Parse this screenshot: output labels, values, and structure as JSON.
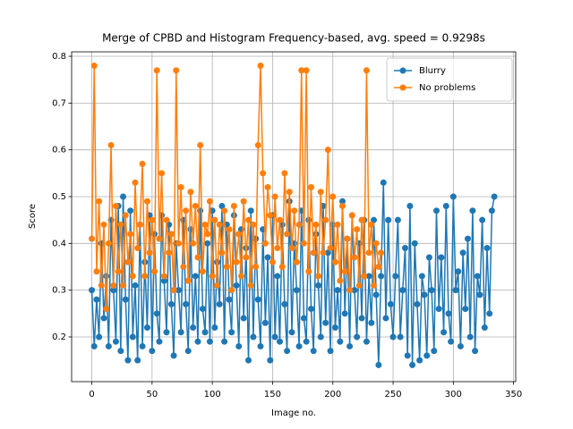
{
  "chart_data": {
    "type": "line",
    "title": "Merge of CPBD and Histogram Frequency-based, avg. speed = 0.9298s",
    "x_label": "Image no.",
    "y_label": "Score",
    "xlim": [
      -16.75,
      351.75
    ],
    "xticks": [
      0,
      50,
      100,
      150,
      200,
      250,
      300,
      350
    ],
    "ylim": [
      0.1044,
      0.8096
    ],
    "yticks": [
      0.2,
      0.3,
      0.4,
      0.5,
      0.6,
      0.7,
      0.8
    ],
    "grid": true,
    "legend": "upper right",
    "marker": "o",
    "series": [
      {
        "name": "Blurry",
        "color": "#1f77b4",
        "x": [
          0,
          2,
          4,
          6,
          8,
          10,
          12,
          14,
          16,
          18,
          20,
          22,
          24,
          26,
          28,
          30,
          32,
          34,
          36,
          38,
          40,
          42,
          44,
          46,
          48,
          50,
          52,
          54,
          56,
          58,
          60,
          62,
          64,
          66,
          68,
          70,
          72,
          74,
          76,
          78,
          80,
          82,
          84,
          86,
          88,
          90,
          92,
          94,
          96,
          98,
          100,
          102,
          104,
          106,
          108,
          110,
          112,
          114,
          116,
          118,
          120,
          122,
          124,
          126,
          128,
          130,
          132,
          134,
          136,
          138,
          140,
          142,
          144,
          146,
          148,
          150,
          152,
          154,
          156,
          158,
          160,
          162,
          164,
          166,
          168,
          170,
          172,
          174,
          176,
          178,
          180,
          182,
          184,
          186,
          188,
          190,
          192,
          194,
          196,
          198,
          200,
          202,
          204,
          206,
          208,
          210,
          212,
          214,
          216,
          218,
          220,
          222,
          224,
          226,
          228,
          230,
          232,
          234,
          236,
          238,
          240,
          242,
          244,
          246,
          248,
          250,
          252,
          254,
          256,
          258,
          260,
          262,
          264,
          266,
          268,
          270,
          272,
          274,
          276,
          278,
          280,
          282,
          284,
          286,
          288,
          290,
          292,
          294,
          296,
          298,
          300,
          302,
          304,
          306,
          308,
          310,
          312,
          314,
          316,
          318,
          320,
          322,
          324,
          326,
          328,
          330,
          332,
          334
        ],
        "values": [
          0.3,
          0.18,
          0.28,
          0.2,
          0.4,
          0.24,
          0.33,
          0.18,
          0.45,
          0.3,
          0.19,
          0.48,
          0.17,
          0.5,
          0.28,
          0.15,
          0.47,
          0.2,
          0.31,
          0.15,
          0.44,
          0.18,
          0.36,
          0.22,
          0.46,
          0.17,
          0.42,
          0.25,
          0.19,
          0.46,
          0.32,
          0.21,
          0.44,
          0.27,
          0.16,
          0.4,
          0.3,
          0.21,
          0.45,
          0.27,
          0.17,
          0.43,
          0.22,
          0.33,
          0.19,
          0.47,
          0.26,
          0.21,
          0.4,
          0.19,
          0.47,
          0.22,
          0.36,
          0.27,
          0.48,
          0.19,
          0.44,
          0.28,
          0.21,
          0.46,
          0.31,
          0.18,
          0.43,
          0.24,
          0.39,
          0.15,
          0.47,
          0.2,
          0.41,
          0.28,
          0.18,
          0.43,
          0.23,
          0.37,
          0.15,
          0.46,
          0.2,
          0.33,
          0.19,
          0.44,
          0.27,
          0.17,
          0.49,
          0.21,
          0.4,
          0.3,
          0.18,
          0.47,
          0.24,
          0.19,
          0.45,
          0.26,
          0.17,
          0.42,
          0.31,
          0.2,
          0.48,
          0.23,
          0.38,
          0.17,
          0.44,
          0.22,
          0.3,
          0.19,
          0.49,
          0.25,
          0.41,
          0.18,
          0.46,
          0.3,
          0.2,
          0.4,
          0.24,
          0.45,
          0.19,
          0.33,
          0.23,
          0.45,
          0.29,
          0.14,
          0.33,
          0.53,
          0.24,
          0.45,
          0.27,
          0.2,
          0.33,
          0.45,
          0.2,
          0.3,
          0.39,
          0.16,
          0.48,
          0.14,
          0.4,
          0.27,
          0.15,
          0.33,
          0.29,
          0.16,
          0.37,
          0.3,
          0.17,
          0.47,
          0.26,
          0.37,
          0.21,
          0.48,
          0.25,
          0.19,
          0.5,
          0.3,
          0.34,
          0.18,
          0.38,
          0.26,
          0.41,
          0.2,
          0.47,
          0.17,
          0.33,
          0.29,
          0.45,
          0.22,
          0.39,
          0.25,
          0.47,
          0.5
        ]
      },
      {
        "name": "No problems",
        "color": "#ff7f0e",
        "x": [
          0,
          2,
          4,
          6,
          8,
          10,
          12,
          14,
          16,
          18,
          20,
          22,
          24,
          26,
          28,
          30,
          32,
          34,
          36,
          38,
          40,
          42,
          44,
          46,
          48,
          50,
          52,
          54,
          56,
          58,
          60,
          62,
          64,
          66,
          68,
          70,
          72,
          74,
          76,
          78,
          80,
          82,
          84,
          86,
          88,
          90,
          92,
          94,
          96,
          98,
          100,
          102,
          104,
          106,
          108,
          110,
          112,
          114,
          116,
          118,
          120,
          122,
          124,
          126,
          128,
          130,
          132,
          134,
          136,
          138,
          140,
          142,
          144,
          146,
          148,
          150,
          152,
          154,
          156,
          158,
          160,
          162,
          164,
          166,
          168,
          170,
          172,
          174,
          176,
          178,
          180,
          182,
          184,
          186,
          188,
          190,
          192,
          194,
          196,
          198,
          200,
          202,
          204,
          206,
          208,
          210,
          212,
          214,
          216,
          218,
          220,
          222,
          224,
          226,
          228,
          230,
          232,
          234,
          236,
          238,
          240
        ],
        "values": [
          0.41,
          0.78,
          0.34,
          0.49,
          0.31,
          0.44,
          0.26,
          0.4,
          0.61,
          0.31,
          0.48,
          0.34,
          0.44,
          0.31,
          0.46,
          0.36,
          0.42,
          0.33,
          0.53,
          0.39,
          0.44,
          0.57,
          0.33,
          0.49,
          0.38,
          0.45,
          0.34,
          0.77,
          0.41,
          0.55,
          0.33,
          0.45,
          0.38,
          0.42,
          0.3,
          0.77,
          0.4,
          0.52,
          0.35,
          0.47,
          0.32,
          0.51,
          0.4,
          0.48,
          0.37,
          0.61,
          0.34,
          0.44,
          0.42,
          0.49,
          0.33,
          0.45,
          0.31,
          0.44,
          0.38,
          0.47,
          0.35,
          0.43,
          0.3,
          0.48,
          0.36,
          0.42,
          0.33,
          0.49,
          0.37,
          0.45,
          0.31,
          0.44,
          0.35,
          0.61,
          0.78,
          0.55,
          0.4,
          0.52,
          0.46,
          0.36,
          0.5,
          0.39,
          0.45,
          0.35,
          0.55,
          0.42,
          0.51,
          0.39,
          0.47,
          0.36,
          0.44,
          0.77,
          0.4,
          0.77,
          0.34,
          0.52,
          0.38,
          0.44,
          0.33,
          0.51,
          0.38,
          0.45,
          0.6,
          0.39,
          0.5,
          0.36,
          0.44,
          0.32,
          0.48,
          0.34,
          0.41,
          0.3,
          0.46,
          0.37,
          0.43,
          0.31,
          0.45,
          0.33,
          0.77,
          0.38,
          0.44,
          0.31,
          0.4,
          0.35,
          0.38
        ]
      }
    ]
  }
}
